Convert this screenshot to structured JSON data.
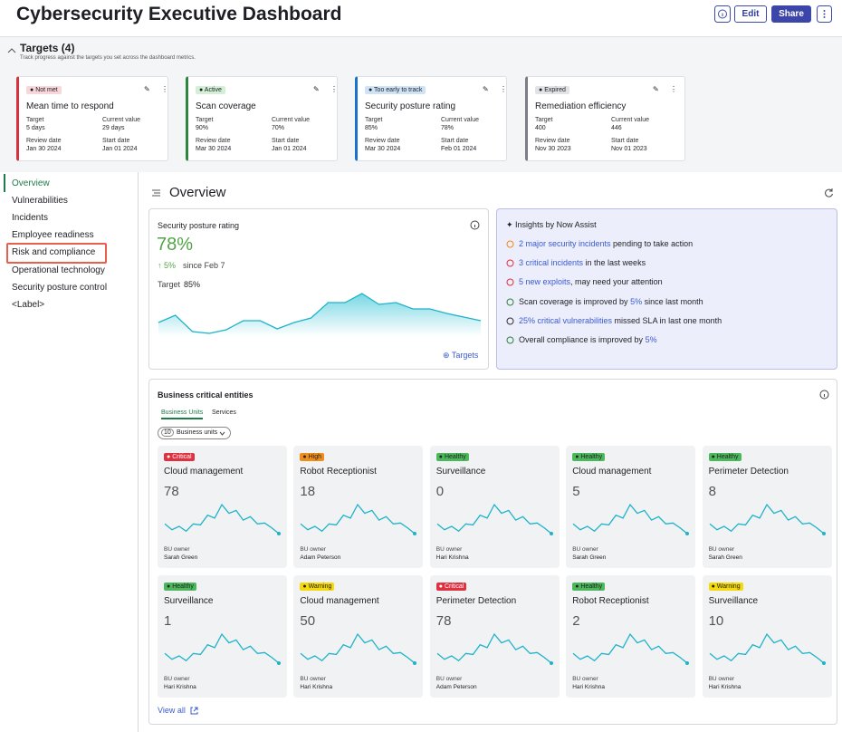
{
  "header": {
    "title": "Cybersecurity Executive Dashboard",
    "buttons": [
      "Edit",
      "Share"
    ]
  },
  "targets": {
    "title": "Targets (4)",
    "subtitle": "Track progress against the targets you set across the dashboard metrics.",
    "labels": {
      "target": "Target",
      "current": "Current value",
      "review": "Review date",
      "start": "Start date"
    },
    "cards": [
      {
        "status": "Not met",
        "color": "#d9303e",
        "badge_bg": "#f9d6d9",
        "name": "Mean time to respond",
        "target": "5 days",
        "current": "29 days",
        "review_date": "Jan 30 2024",
        "start_date": "Jan 01 2024"
      },
      {
        "status": "Active",
        "color": "#2e8540",
        "badge_bg": "#d3f0d6",
        "name": "Scan coverage",
        "target": "90%",
        "current": "70%",
        "review_date": "Mar 30 2024",
        "start_date": "Jan 01 2024"
      },
      {
        "status": "Too early to track",
        "color": "#1a73c8",
        "badge_bg": "#cfe3f7",
        "name": "Security posture rating",
        "target": "85%",
        "current": "78%",
        "review_date": "Mar 30 2024",
        "start_date": "Feb 01 2024"
      },
      {
        "status": "Expired",
        "color": "#7a7f87",
        "badge_bg": "#e1e3e6",
        "name": "Remediation efficiency",
        "target": "400",
        "current": "446",
        "review_date": "Nov 30 2023",
        "start_date": "Nov 01 2023"
      }
    ]
  },
  "nav": {
    "items": [
      "Overview",
      "Vulnerabilities",
      "Incidents",
      "Employee readiness",
      "Risk and compliance",
      "Operational technology",
      "Security posture control",
      "<Label>"
    ]
  },
  "overview": {
    "title": "Overview",
    "posture": {
      "title": "Security posture rating",
      "value": "78%",
      "change": "5%",
      "since": "since Feb 7",
      "target_label": "Target",
      "target": "85%",
      "link": "Targets",
      "sparkline": [
        40,
        48,
        30,
        28,
        32,
        42,
        42,
        33,
        40,
        45,
        62,
        62,
        72,
        60,
        62,
        55,
        55,
        50,
        46,
        42
      ]
    },
    "insights": {
      "title": "Insights by Now Assist",
      "items": [
        [
          {
            "text": "2 major security incidents",
            "link": true
          },
          {
            "text": " pending to take action"
          }
        ],
        [
          {
            "text": "3 critical incidents",
            "link": true
          },
          {
            "text": " in the last weeks"
          }
        ],
        [
          {
            "text": "5 new exploits",
            "link": true
          },
          {
            "text": ", may need your attention"
          }
        ],
        [
          {
            "text": "Scan coverage is improved by "
          },
          {
            "text": "5%",
            "link": true
          },
          {
            "text": " since last month"
          }
        ],
        [
          {
            "text": "25% critical vulnerabilities",
            "link": true
          },
          {
            "text": " missed SLA in last one month"
          }
        ],
        [
          {
            "text": "Overall compliance is improved by "
          },
          {
            "text": "5%",
            "link": true
          }
        ]
      ]
    },
    "entities": {
      "title": "Business critical entities",
      "tabs": [
        "Business Units",
        "Services"
      ],
      "filter_count": "10",
      "filter_label": "Business units",
      "owner_label": "BU owner",
      "view_all": "View all",
      "sparkline": [
        30,
        18,
        25,
        15,
        30,
        28,
        48,
        42,
        70,
        52,
        58,
        38,
        45,
        30,
        32,
        22,
        10
      ],
      "cards": [
        {
          "status": "Critical",
          "color": "#e03140",
          "name": "Cloud management",
          "value": 78,
          "owner": "Sarah Green"
        },
        {
          "status": "High",
          "color": "#f08c1a",
          "name": "Robot Receptionist",
          "value": 18,
          "owner": "Adam Peterson"
        },
        {
          "status": "Healthy",
          "color": "#4cb85c",
          "name": "Surveillance",
          "value": 0,
          "owner": "Hari Krishna"
        },
        {
          "status": "Healthy",
          "color": "#4cb85c",
          "name": "Cloud management",
          "value": 5,
          "owner": "Sarah Green"
        },
        {
          "status": "Healthy",
          "color": "#4cb85c",
          "name": "Perimeter Detection",
          "value": 8,
          "owner": "Sarah Green"
        },
        {
          "status": "Healthy",
          "color": "#4cb85c",
          "name": "Surveillance",
          "value": 1,
          "owner": "Hari Krishna"
        },
        {
          "status": "Warning",
          "color": "#f5d90a",
          "name": "Cloud management",
          "value": 50,
          "owner": "Hari Krishna"
        },
        {
          "status": "Critical",
          "color": "#e03140",
          "name": "Perimeter Detection",
          "value": 78,
          "owner": "Adam Peterson"
        },
        {
          "status": "Healthy",
          "color": "#4cb85c",
          "name": "Robot Receptionist",
          "value": 2,
          "owner": "Hari Krishna"
        },
        {
          "status": "Warning",
          "color": "#f5d90a",
          "name": "Surveillance",
          "value": 10,
          "owner": "Hari Krishna"
        }
      ]
    }
  }
}
